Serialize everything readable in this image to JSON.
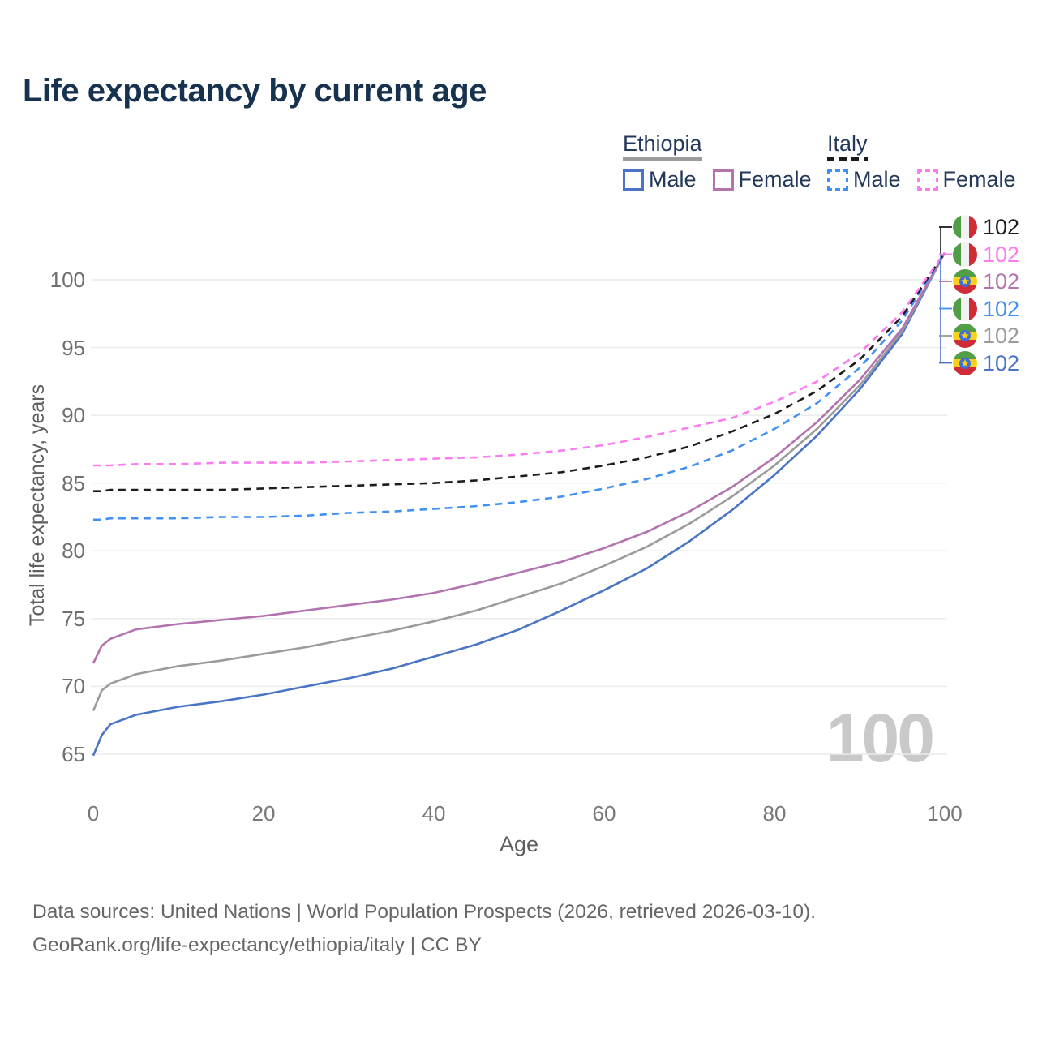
{
  "title": "Life expectancy by current age",
  "legend": {
    "ethiopia": {
      "heading": "Ethiopia",
      "male_label": "Male",
      "female_label": "Female"
    },
    "italy": {
      "heading": "Italy",
      "male_label": "Male",
      "female_label": "Female"
    }
  },
  "axes": {
    "x_label": "Age",
    "y_label": "Total life expectancy, years",
    "x_ticks": [
      0,
      20,
      40,
      60,
      80,
      100
    ],
    "y_ticks": [
      65,
      70,
      75,
      80,
      85,
      90,
      95,
      100
    ]
  },
  "watermark": "100",
  "right_labels": [
    {
      "country": "italy",
      "series": "italy-total",
      "value": "102",
      "color": "#1c1c1c"
    },
    {
      "country": "italy",
      "series": "italy-female",
      "value": "102",
      "color": "#fb7cf0"
    },
    {
      "country": "ethiopia",
      "series": "ethiopia-female",
      "value": "102",
      "color": "#b273af"
    },
    {
      "country": "italy",
      "series": "italy-male",
      "value": "102",
      "color": "#4190f4"
    },
    {
      "country": "ethiopia",
      "series": "ethiopia-total",
      "value": "102",
      "color": "#9b9b9b"
    },
    {
      "country": "ethiopia",
      "series": "ethiopia-male",
      "value": "102",
      "color": "#4a74c4"
    }
  ],
  "flags": {
    "italy": {
      "orientation": "vertical",
      "bands": [
        "#529e47",
        "#f2f2f2",
        "#d02c38"
      ]
    },
    "ethiopia": {
      "orientation": "horizontal",
      "bands": [
        "#529e47",
        "#fdd018",
        "#d02c38"
      ],
      "emblem_disc": "#3f6fd6",
      "emblem_star": "#fdd018"
    }
  },
  "colors": {
    "title": "#17324f",
    "gridline": "#ececec",
    "connector_top": "#1c1c1c",
    "connector_bottom": "#4a74c4",
    "watermark": "#c9c9c9"
  },
  "sources": {
    "line1": "Data sources: United Nations | World Population Prospects (2026, retrieved 2026-03-10).",
    "line2": "GeoRank.org/life-expectancy/ethiopia/italy | CC BY"
  },
  "chart_data": {
    "type": "line",
    "title": "Life expectancy by current age",
    "xlabel": "Age",
    "ylabel": "Total life expectancy, years",
    "xlim": [
      0,
      100
    ],
    "ylim": [
      63.5,
      103
    ],
    "grid": "horizontal-only",
    "legend_position": "top-right",
    "x": [
      0,
      1,
      2,
      5,
      10,
      15,
      20,
      25,
      30,
      35,
      40,
      45,
      50,
      55,
      60,
      65,
      70,
      75,
      80,
      85,
      90,
      95,
      100
    ],
    "series": [
      {
        "id": "ethiopia-male",
        "name": "Ethiopia Male",
        "color": "#4a74c4",
        "dash": false,
        "values": [
          64.9,
          66.4,
          67.2,
          67.9,
          68.5,
          68.9,
          69.4,
          70.0,
          70.6,
          71.3,
          72.2,
          73.1,
          74.2,
          75.6,
          77.1,
          78.7,
          80.7,
          83.0,
          85.6,
          88.5,
          91.9,
          96.0,
          102
        ]
      },
      {
        "id": "ethiopia-total",
        "name": "Ethiopia",
        "color": "#9b9b9b",
        "dash": false,
        "values": [
          68.2,
          69.7,
          70.2,
          70.9,
          71.5,
          71.9,
          72.4,
          72.9,
          73.5,
          74.1,
          74.8,
          75.6,
          76.6,
          77.6,
          78.9,
          80.3,
          82.0,
          84.0,
          86.3,
          89.0,
          92.2,
          96.2,
          102
        ]
      },
      {
        "id": "ethiopia-female",
        "name": "Ethiopia Female",
        "color": "#b273af",
        "dash": false,
        "values": [
          71.7,
          73.0,
          73.5,
          74.2,
          74.6,
          74.9,
          75.2,
          75.6,
          76.0,
          76.4,
          76.9,
          77.6,
          78.4,
          79.2,
          80.2,
          81.4,
          82.9,
          84.7,
          86.9,
          89.5,
          92.6,
          96.4,
          102
        ]
      },
      {
        "id": "italy-male",
        "name": "Italy Male",
        "color": "#4190f4",
        "dash": true,
        "values": [
          82.3,
          82.3,
          82.4,
          82.4,
          82.4,
          82.5,
          82.5,
          82.6,
          82.8,
          82.9,
          83.1,
          83.3,
          83.6,
          84.0,
          84.6,
          85.3,
          86.2,
          87.4,
          89.0,
          90.9,
          93.5,
          97.0,
          102
        ]
      },
      {
        "id": "italy-total",
        "name": "Italy",
        "color": "#1c1c1c",
        "dash": true,
        "values": [
          84.4,
          84.4,
          84.5,
          84.5,
          84.5,
          84.5,
          84.6,
          84.7,
          84.8,
          84.9,
          85.0,
          85.2,
          85.5,
          85.8,
          86.3,
          86.9,
          87.7,
          88.8,
          90.1,
          91.8,
          94.1,
          97.3,
          102
        ]
      },
      {
        "id": "italy-female",
        "name": "Italy Female",
        "color": "#fb7cf0",
        "dash": true,
        "values": [
          86.3,
          86.3,
          86.3,
          86.4,
          86.4,
          86.5,
          86.5,
          86.5,
          86.6,
          86.7,
          86.8,
          86.9,
          87.1,
          87.4,
          87.8,
          88.4,
          89.1,
          89.8,
          91.0,
          92.5,
          94.6,
          97.6,
          102
        ]
      }
    ]
  }
}
